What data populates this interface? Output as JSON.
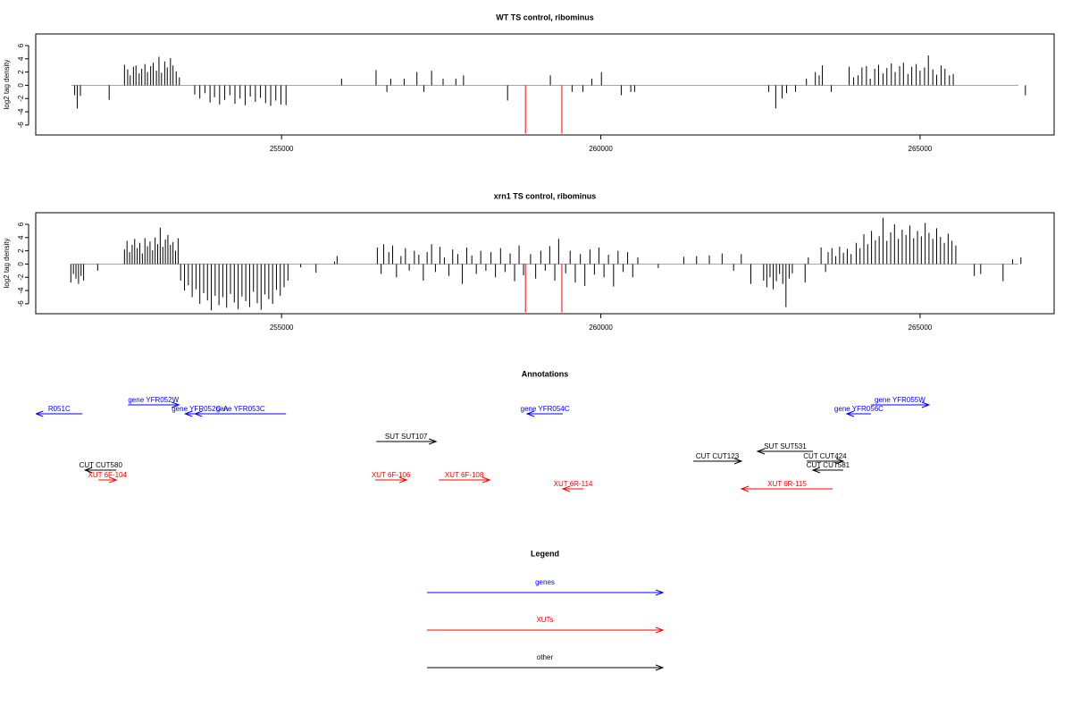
{
  "chart_data": [
    {
      "type": "bar",
      "title": "WT TS control, ribominus",
      "ylabel": "log2 tag density",
      "xlim": [
        251150,
        267100
      ],
      "xticks": [
        255000,
        260000,
        265000
      ],
      "ylim": [
        -7.5,
        7.75
      ],
      "yticks": [
        -6,
        -4,
        -2,
        0,
        2,
        4,
        6
      ],
      "color": "#000000",
      "series": [
        {
          "color": "#000000",
          "x": [
            251760,
            251800,
            251850,
            252300,
            252540,
            252590,
            252630,
            252680,
            252720,
            252770,
            252810,
            252860,
            252900,
            252950,
            252990,
            253040,
            253080,
            253120,
            253170,
            253210,
            253260,
            253300,
            253350,
            253400,
            253640,
            253720,
            253800,
            253880,
            253950,
            254030,
            254110,
            254190,
            254270,
            254350,
            254430,
            254510,
            254590,
            254670,
            254750,
            254830,
            254910,
            254990,
            255070,
            255940,
            256480,
            256650,
            256710,
            256920,
            257120,
            257230,
            257350,
            257530,
            257730,
            257850,
            258540,
            259210,
            259550,
            259720,
            259860,
            260010,
            260320,
            260470,
            260530,
            262630,
            262740,
            262840,
            262910,
            263050,
            263220,
            263360,
            263420,
            263470,
            263610,
            263890,
            263960,
            264030,
            264090,
            264160,
            264220,
            264290,
            264350,
            264420,
            264480,
            264550,
            264610,
            264680,
            264740,
            264810,
            264870,
            264940,
            265000,
            265070,
            265130,
            265200,
            265260,
            265330,
            265390,
            265460,
            265520,
            266650
          ],
          "values": [
            -1.5,
            -3.5,
            -1.6,
            -2.2,
            3.1,
            2.4,
            1.5,
            2.8,
            3.0,
            1.8,
            2.5,
            3.2,
            2.0,
            2.9,
            3.4,
            2.2,
            4.3,
            1.9,
            3.6,
            2.7,
            4.1,
            3.0,
            2.1,
            1.2,
            -1.4,
            -2.0,
            -1.2,
            -2.6,
            -1.8,
            -2.9,
            -2.2,
            -1.5,
            -2.8,
            -2.0,
            -3.0,
            -1.7,
            -2.5,
            -1.9,
            -2.7,
            -3.1,
            -2.3,
            -2.9,
            -3.0,
            1.0,
            2.3,
            -1.0,
            1.0,
            1.0,
            2.0,
            -1.0,
            2.2,
            1.0,
            1.0,
            1.5,
            -2.3,
            1.5,
            -1.0,
            -1.0,
            1.0,
            2.0,
            -1.5,
            -1.0,
            -1.0,
            -1.0,
            -3.5,
            -2.0,
            -1.2,
            -1.0,
            1.0,
            2.0,
            1.5,
            3.0,
            -1.0,
            2.8,
            1.2,
            1.5,
            2.7,
            2.9,
            1.0,
            2.5,
            3.1,
            1.8,
            2.6,
            3.3,
            2.0,
            2.9,
            3.4,
            1.7,
            2.8,
            3.2,
            2.2,
            2.7,
            4.5,
            2.4,
            1.6,
            3.0,
            2.5,
            1.5,
            1.7,
            -1.5
          ]
        },
        {
          "color": "#ff0000",
          "x": [
            258820,
            259390
          ],
          "values": [
            -7.3,
            -7.3
          ]
        }
      ]
    },
    {
      "type": "bar",
      "title": "xrn1 TS control, ribominus",
      "ylabel": "log2 tag density",
      "xlim": [
        251150,
        267100
      ],
      "xticks": [
        255000,
        260000,
        265000
      ],
      "ylim": [
        -7.5,
        7.75
      ],
      "yticks": [
        -6,
        -4,
        -2,
        0,
        2,
        4,
        6
      ],
      "color": "#000000",
      "series": [
        {
          "color": "#000000",
          "x": [
            251700,
            251740,
            251780,
            251820,
            251860,
            251900,
            252120,
            252540,
            252580,
            252620,
            252660,
            252700,
            252740,
            252780,
            252820,
            252860,
            252900,
            252940,
            252980,
            253020,
            253060,
            253100,
            253140,
            253180,
            253220,
            253260,
            253300,
            253340,
            253380,
            253420,
            253480,
            253540,
            253600,
            253660,
            253720,
            253780,
            253840,
            253900,
            253960,
            254020,
            254080,
            254140,
            254200,
            254260,
            254320,
            254380,
            254440,
            254500,
            254560,
            254620,
            254680,
            254740,
            254800,
            254860,
            254920,
            254980,
            255040,
            255100,
            255300,
            255540,
            255830,
            255870,
            256500,
            256560,
            256600,
            256680,
            256740,
            256800,
            256870,
            256940,
            257000,
            257080,
            257150,
            257220,
            257280,
            257350,
            257410,
            257480,
            257550,
            257620,
            257680,
            257760,
            257830,
            257900,
            257980,
            258050,
            258120,
            258200,
            258280,
            258350,
            258430,
            258500,
            258580,
            258650,
            258720,
            258790,
            258900,
            258980,
            259060,
            259130,
            259200,
            259280,
            259340,
            259450,
            259520,
            259600,
            259680,
            259750,
            259830,
            259900,
            259970,
            260050,
            260120,
            260200,
            260270,
            260350,
            260420,
            260500,
            260580,
            260900,
            261300,
            261500,
            261700,
            261900,
            262080,
            262200,
            262350,
            262550,
            262600,
            262650,
            262700,
            262750,
            262800,
            262850,
            262900,
            262950,
            263000,
            263200,
            263250,
            263450,
            263520,
            263560,
            263620,
            263680,
            263740,
            263800,
            263860,
            263920,
            264000,
            264060,
            264120,
            264180,
            264240,
            264300,
            264360,
            264420,
            264480,
            264540,
            264600,
            264660,
            264720,
            264780,
            264840,
            264900,
            264960,
            265020,
            265080,
            265140,
            265200,
            265260,
            265320,
            265380,
            265440,
            265500,
            265560,
            265850,
            265950,
            266300,
            266450,
            266580
          ],
          "values": [
            -2.8,
            -1.5,
            -2.2,
            -3.0,
            -1.8,
            -2.5,
            -1.0,
            2.2,
            3.5,
            1.8,
            2.9,
            3.8,
            2.4,
            3.2,
            1.6,
            3.9,
            2.7,
            3.4,
            2.1,
            4.0,
            3.0,
            5.5,
            2.6,
            3.7,
            4.4,
            2.9,
            3.3,
            2.0,
            3.9,
            -2.5,
            -4.0,
            -3.2,
            -5.0,
            -3.8,
            -6.0,
            -4.4,
            -5.5,
            -7.0,
            -4.8,
            -6.2,
            -5.0,
            -6.6,
            -4.5,
            -5.8,
            -6.8,
            -4.9,
            -5.6,
            -6.5,
            -4.2,
            -5.9,
            -6.9,
            -4.6,
            -5.3,
            -6.0,
            -3.9,
            -4.8,
            -3.5,
            -2.5,
            -0.5,
            -1.3,
            0.4,
            1.2,
            2.5,
            -1.5,
            3.0,
            1.8,
            2.8,
            -2.0,
            1.2,
            2.4,
            -1.0,
            2.0,
            1.4,
            -2.5,
            1.8,
            3.0,
            -1.2,
            2.6,
            1.0,
            -1.8,
            2.2,
            1.5,
            -3.0,
            2.5,
            1.3,
            -1.5,
            2.0,
            -1.0,
            1.8,
            -2.0,
            2.4,
            -1.2,
            1.6,
            -2.6,
            2.8,
            -1.7,
            1.5,
            -2.2,
            2.0,
            -1.0,
            2.7,
            -2.5,
            3.8,
            -1.4,
            2.0,
            -2.8,
            1.5,
            -3.3,
            2.2,
            -1.6,
            2.5,
            -2.0,
            1.4,
            -3.4,
            2.0,
            -1.2,
            1.8,
            -2.0,
            1.0,
            -0.6,
            1.1,
            1.2,
            1.3,
            1.6,
            -1.0,
            1.5,
            -3.0,
            -2.5,
            -3.5,
            -2.0,
            -3.8,
            -2.6,
            -1.5,
            -3.0,
            -6.5,
            -2.2,
            -1.4,
            -2.8,
            1.0,
            2.5,
            -1.2,
            1.8,
            2.4,
            1.2,
            2.6,
            1.7,
            2.3,
            1.5,
            3.2,
            2.4,
            4.5,
            3.0,
            5.0,
            3.6,
            4.2,
            7.0,
            3.5,
            4.8,
            6.0,
            3.8,
            5.2,
            4.4,
            5.8,
            3.9,
            5.0,
            4.2,
            6.2,
            4.7,
            3.8,
            5.4,
            4.1,
            3.2,
            4.6,
            3.5,
            2.8,
            -1.8,
            -1.5,
            -2.6,
            0.7,
            1.0
          ]
        },
        {
          "color": "#ff0000",
          "x": [
            258820,
            259390
          ],
          "values": [
            -7.3,
            -7.3
          ]
        }
      ]
    },
    {
      "type": "annotation",
      "title": "Annotations",
      "xlim": [
        251150,
        267100
      ],
      "features": [
        {
          "label": "R051C",
          "start": 251881,
          "end": 251154,
          "color": "#0000ff"
        },
        {
          "label": "gene YFR052W",
          "start": 252595,
          "end": 253392,
          "color": "#0000ff"
        },
        {
          "label": "gene YFR052C-A",
          "start": 253951,
          "end": 253490,
          "color": "#0000ff"
        },
        {
          "label": "gene YFR053C",
          "start": 255070,
          "end": 253644,
          "color": "#0000ff"
        },
        {
          "label": "gene YFR054C",
          "start": 259405,
          "end": 258846,
          "color": "#0000ff"
        },
        {
          "label": "gene YFR055W",
          "start": 264231,
          "end": 265140,
          "color": "#0000ff"
        },
        {
          "label": "gene YFR056C",
          "start": 264231,
          "end": 263853,
          "color": "#0000ff"
        },
        {
          "label": "SUT SUT107",
          "start": 256483,
          "end": 257420,
          "color": "#000000"
        },
        {
          "label": "SUT SUT531",
          "start": 263322,
          "end": 262455,
          "color": "#000000"
        },
        {
          "label": "CUT CUT123",
          "start": 261448,
          "end": 262203,
          "color": "#000000"
        },
        {
          "label": "CUT CUT424",
          "start": 263224,
          "end": 263797,
          "color": "#000000"
        },
        {
          "label": "CUT CUT581",
          "start": 263797,
          "end": 263322,
          "color": "#000000"
        },
        {
          "label": "CUT CUT580",
          "start": 252413,
          "end": 251923,
          "color": "#000000"
        },
        {
          "label": "XUT 6F-104",
          "start": 252133,
          "end": 252413,
          "color": "#ff0000"
        },
        {
          "label": "XUT 6F-106",
          "start": 256469,
          "end": 256958,
          "color": "#ff0000"
        },
        {
          "label": "XUT 6F-108",
          "start": 257462,
          "end": 258259,
          "color": "#ff0000"
        },
        {
          "label": "XUT 6R-114",
          "start": 259727,
          "end": 259405,
          "color": "#ff0000"
        },
        {
          "label": "XUT 6R-115",
          "start": 263630,
          "end": 262203,
          "color": "#ff0000"
        }
      ]
    },
    {
      "type": "legend",
      "title": "Legend",
      "entries": [
        {
          "label": "genes",
          "color": "#0000ff"
        },
        {
          "label": "XUTs",
          "color": "#ff0000"
        },
        {
          "label": "other",
          "color": "#000000"
        }
      ]
    }
  ]
}
